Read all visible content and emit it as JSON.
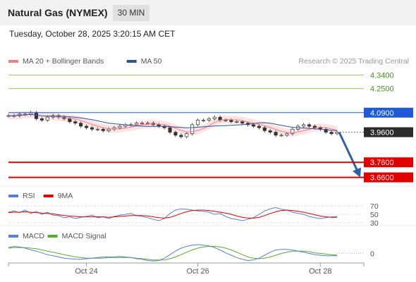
{
  "header": {
    "title": "Natural Gas (NYMEX)",
    "timeframe": "30 MIN",
    "datetime": "Tuesday, October 28, 2025 3:20:15 AM CET"
  },
  "colors": {
    "background": "#ffffff",
    "header_bg": "#f2f2f2",
    "resistance": "#1f5bd6",
    "support": "#e00000",
    "target_line": "#8fcf63",
    "target_text": "#3a9a12",
    "ma20": "#f08080",
    "ma50": "#2f5597",
    "bollinger_fill": "#fadadd",
    "rsi": "#5a7fd6",
    "rsi_ma": "#e00000",
    "macd": "#5a7fd6",
    "macd_signal": "#5bab2e",
    "arrow": "#2f5faa"
  },
  "chart_data": [
    {
      "type": "candlestick",
      "panel": "price",
      "legend": [
        {
          "label": "MA 20 + Bollinger Bands",
          "color": "#f08080"
        },
        {
          "label": "MA 50",
          "color": "#2f5597"
        }
      ],
      "watermark": "Research © 2025 Trading Central",
      "ylim": [
        3.63,
        4.37
      ],
      "levels": [
        {
          "value": 4.34,
          "label": "4.3400",
          "kind": "target"
        },
        {
          "value": 4.25,
          "label": "4.2500",
          "kind": "target"
        },
        {
          "value": 4.09,
          "label": "4.0900",
          "kind": "resistance"
        },
        {
          "value": 3.96,
          "label": "3.9600",
          "kind": "last"
        },
        {
          "value": 3.76,
          "label": "3.7600",
          "kind": "support"
        },
        {
          "value": 3.66,
          "label": "3.6600",
          "kind": "support"
        }
      ],
      "close_path": [
        4.07,
        4.07,
        4.08,
        4.08,
        4.09,
        4.05,
        4.04,
        4.06,
        4.07,
        4.06,
        4.05,
        4.03,
        4.02,
        4.0,
        3.99,
        3.98,
        3.98,
        3.97,
        3.98,
        3.99,
        4.0,
        4.01,
        4.01,
        4.02,
        4.02,
        4.02,
        4.01,
        4.0,
        3.99,
        3.96,
        3.94,
        3.93,
        3.95,
        4.01,
        4.04,
        4.04,
        4.05,
        4.06,
        4.04,
        4.04,
        4.03,
        4.03,
        4.02,
        4.01,
        4.0,
        3.99,
        3.97,
        3.96,
        3.94,
        3.94,
        3.95,
        3.98,
        4.0,
        4.01,
        4.0,
        3.99,
        3.98,
        3.96,
        3.95,
        3.96
      ],
      "forecast_arrow": {
        "from": 3.96,
        "to": 3.66
      }
    },
    {
      "type": "line",
      "panel": "rsi",
      "legend": [
        {
          "label": "RSI",
          "color": "#5a7fd6"
        },
        {
          "label": "9MA",
          "color": "#e00000"
        }
      ],
      "y_ticks": [
        "70",
        "50",
        "30"
      ],
      "series": [
        {
          "name": "RSI",
          "values": [
            55,
            58,
            54,
            60,
            52,
            57,
            50,
            55,
            48,
            47,
            42,
            44,
            40,
            43,
            45,
            48,
            42,
            44,
            40,
            45,
            48,
            50,
            52,
            47,
            45,
            42,
            38,
            35,
            40,
            52,
            60,
            63,
            62,
            60,
            58,
            57,
            55,
            50,
            52,
            45,
            40,
            38,
            35,
            38,
            42,
            50,
            58,
            63,
            66,
            62,
            60,
            55,
            52,
            50,
            45,
            42,
            40,
            42,
            44,
            45
          ]
        },
        {
          "name": "9MA",
          "values": [
            54,
            55,
            55,
            56,
            55,
            54,
            53,
            52,
            51,
            49,
            47,
            46,
            45,
            44,
            44,
            44,
            44,
            44,
            43,
            44,
            45,
            46,
            47,
            47,
            47,
            46,
            44,
            42,
            41,
            43,
            47,
            52,
            56,
            59,
            60,
            60,
            59,
            57,
            55,
            53,
            50,
            46,
            43,
            41,
            41,
            43,
            47,
            52,
            56,
            59,
            60,
            59,
            57,
            55,
            52,
            49,
            46,
            44,
            43,
            43
          ]
        }
      ]
    },
    {
      "type": "line",
      "panel": "macd",
      "legend": [
        {
          "label": "MACD",
          "color": "#5a7fd6"
        },
        {
          "label": "MACD Signal",
          "color": "#5bab2e"
        }
      ],
      "y_ticks": [
        "0"
      ],
      "series": [
        {
          "name": "MACD",
          "values": [
            0.01,
            0.012,
            0.011,
            0.009,
            0.006,
            0.004,
            0.001,
            -0.002,
            -0.004,
            -0.006,
            -0.008,
            -0.009,
            -0.01,
            -0.01,
            -0.009,
            -0.008,
            -0.007,
            -0.006,
            -0.006,
            -0.006,
            -0.005,
            -0.006,
            -0.007,
            -0.009,
            -0.01,
            -0.012,
            -0.013,
            -0.012,
            -0.008,
            -0.002,
            0.004,
            0.009,
            0.012,
            0.014,
            0.015,
            0.014,
            0.013,
            0.01,
            0.006,
            0.001,
            -0.003,
            -0.007,
            -0.01,
            -0.012,
            -0.011,
            -0.008,
            -0.003,
            0.002,
            0.006,
            0.007,
            0.007,
            0.006,
            0.004,
            0.002,
            0.0,
            -0.002,
            -0.003,
            -0.004,
            -0.004,
            -0.004
          ]
        },
        {
          "name": "MACD Signal",
          "values": [
            0.009,
            0.01,
            0.01,
            0.01,
            0.009,
            0.008,
            0.006,
            0.004,
            0.002,
            0.0,
            -0.002,
            -0.004,
            -0.006,
            -0.007,
            -0.008,
            -0.008,
            -0.008,
            -0.008,
            -0.007,
            -0.007,
            -0.007,
            -0.007,
            -0.007,
            -0.008,
            -0.009,
            -0.01,
            -0.011,
            -0.011,
            -0.011,
            -0.009,
            -0.006,
            -0.002,
            0.002,
            0.006,
            0.009,
            0.011,
            0.012,
            0.012,
            0.011,
            0.009,
            0.006,
            0.002,
            -0.002,
            -0.006,
            -0.008,
            -0.009,
            -0.008,
            -0.006,
            -0.003,
            0.0,
            0.002,
            0.004,
            0.004,
            0.004,
            0.003,
            0.001,
            0.0,
            -0.001,
            -0.002,
            -0.003
          ]
        }
      ]
    }
  ],
  "x_axis": {
    "labels": [
      {
        "text": "Oct 24",
        "index": 14
      },
      {
        "text": "Oct 26",
        "index": 34
      },
      {
        "text": "Oct 28",
        "index": 56
      }
    ]
  }
}
